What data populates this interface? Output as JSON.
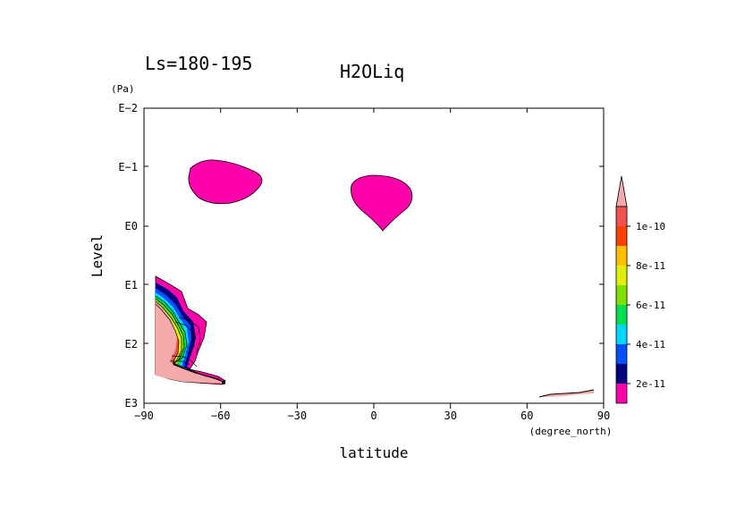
{
  "chart_data": {
    "type": "contour",
    "title_left": "Ls=180-195",
    "title": "H2OLiq",
    "xlabel": "latitude",
    "xunit": "(degree_north)",
    "ylabel": "Level",
    "yunit": "(Pa)",
    "xlim": [
      -90,
      90
    ],
    "x_ticks": [
      -90,
      -60,
      -30,
      0,
      30,
      60,
      90
    ],
    "x_tick_labels": [
      "−90",
      "−60",
      "−30",
      "0",
      "30",
      "60",
      "90"
    ],
    "y_scale": "log",
    "y_inverted": true,
    "y_tick_labels": [
      "E−2",
      "E−1",
      "E0",
      "E1",
      "E2",
      "E3"
    ],
    "colorbar": {
      "colors": [
        "#ff00aa",
        "#000080",
        "#0050ff",
        "#00d8ff",
        "#00e050",
        "#80e000",
        "#e0f000",
        "#ffc000",
        "#ff4000",
        "#f05050",
        "#f4aaaa"
      ],
      "labels": [
        "2e-11",
        "4e-11",
        "6e-11",
        "8e-11",
        "1e-10"
      ],
      "extend": "max"
    },
    "features": [
      {
        "name": "upper cloud near 60S",
        "level": "2e-11"
      },
      {
        "name": "upper cloud near 5N",
        "level": "2e-11"
      },
      {
        "name": "south polar near-surface cloud",
        "levels": [
          "2e-11",
          "1e-10+"
        ]
      },
      {
        "name": "north polar near-surface cloud",
        "levels": [
          "1e-10+"
        ]
      }
    ]
  }
}
